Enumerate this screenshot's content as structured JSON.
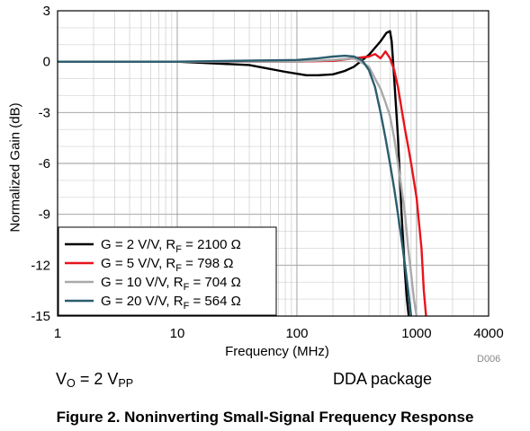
{
  "chart_data": {
    "type": "line",
    "xlabel": "Frequency (MHz)",
    "ylabel": "Normalized Gain (dB)",
    "xscale": "log",
    "xlim": [
      1,
      4000
    ],
    "ylim": [
      -15,
      3
    ],
    "xticks": [
      "1",
      "10",
      "100",
      "1000",
      "4000"
    ],
    "yticks": [
      "3",
      "0",
      "-3",
      "-6",
      "-9",
      "-12",
      "-15"
    ],
    "grid": true,
    "legend_position": "bottom-left",
    "series": [
      {
        "name": "G = 2 V/V, R_F = 2100 Ω",
        "color": "#000000",
        "x": [
          1,
          10,
          40,
          80,
          120,
          150,
          200,
          250,
          300,
          400,
          500,
          560,
          600,
          620,
          650,
          700,
          750,
          800,
          830,
          860
        ],
        "y": [
          0,
          0,
          -0.2,
          -0.6,
          -0.8,
          -0.8,
          -0.75,
          -0.55,
          -0.3,
          0.4,
          1.2,
          1.7,
          1.8,
          1.2,
          -1.0,
          -4.5,
          -9.0,
          -12.5,
          -14.0,
          -15.0
        ]
      },
      {
        "name": "G = 5 V/V, R_F = 798 Ω",
        "color": "#e8141c",
        "x": [
          1,
          10,
          100,
          200,
          300,
          400,
          450,
          500,
          550,
          600,
          650,
          700,
          750,
          800,
          850,
          900,
          1000,
          1100,
          1150,
          1200
        ],
        "y": [
          0,
          0,
          0,
          0.05,
          0.2,
          0.3,
          0.45,
          0.2,
          0.6,
          0.2,
          -0.5,
          -1.5,
          -2.8,
          -4.0,
          -5.0,
          -6.0,
          -8.0,
          -11.0,
          -13.5,
          -15.0
        ]
      },
      {
        "name": "G = 10 V/V, R_F = 704 Ω",
        "color": "#a9a9a9",
        "x": [
          1,
          10,
          100,
          200,
          300,
          400,
          450,
          500,
          550,
          600,
          650,
          700,
          750,
          800,
          850,
          900,
          950,
          1000
        ],
        "y": [
          0,
          0,
          0,
          0.1,
          0.2,
          -0.3,
          -1.0,
          -1.6,
          -2.4,
          -3.2,
          -4.5,
          -6.0,
          -7.5,
          -9.0,
          -11.0,
          -12.5,
          -14.0,
          -15.0
        ]
      },
      {
        "name": "G = 20 V/V, R_F = 564 Ω",
        "color": "#2b5d6e",
        "x": [
          1,
          10,
          100,
          150,
          200,
          250,
          300,
          350,
          400,
          450,
          500,
          550,
          600,
          650,
          700,
          750,
          800,
          850,
          900
        ],
        "y": [
          0,
          0,
          0.1,
          0.2,
          0.3,
          0.35,
          0.3,
          0.1,
          -0.5,
          -1.5,
          -3.0,
          -4.5,
          -6.0,
          -7.5,
          -9.0,
          -10.5,
          -12.0,
          -13.5,
          -15.0
        ]
      }
    ]
  },
  "notes": {
    "vo": "V",
    "vo_sub": "O",
    "vo_rest": " = 2 V",
    "vo_sub2": "PP",
    "package": "DDA package",
    "code": "D006"
  },
  "caption": "Figure 2. Noninverting Small-Signal Frequency Response"
}
